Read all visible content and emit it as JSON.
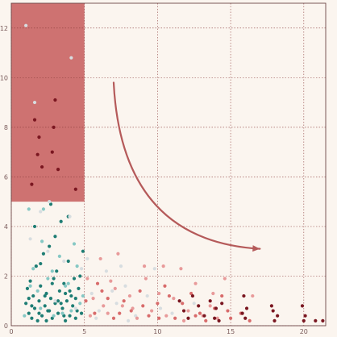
{
  "chart_data": {
    "type": "scatter",
    "title": "",
    "xlabel": "",
    "ylabel": "",
    "xlim": [
      0,
      21.5
    ],
    "ylim": [
      0,
      13
    ],
    "xticks": [
      0,
      5,
      10,
      15,
      20
    ],
    "yticks": [
      0,
      2,
      4,
      6,
      8,
      10,
      12
    ],
    "grid": true,
    "legend": "none",
    "highlight_region": {
      "x": [
        0,
        5
      ],
      "y": [
        5,
        13
      ],
      "color": "#c65a5a"
    },
    "annotation_arrow": {
      "from": [
        7,
        9.8
      ],
      "to": [
        17,
        3.1
      ],
      "color": "#b55a5a"
    },
    "colors": {
      "background": "#fbf5ef",
      "grid": "#8a3a3a",
      "axis": "#6d4646",
      "tick_text": "#7a5c5c",
      "teal": "#1e7d74",
      "light_teal": "#86c8c4",
      "pale": "#d7dde0",
      "pink": "#e89a9a",
      "rose": "#d86b6b",
      "dark_red": "#7a1620"
    },
    "series": [
      {
        "color": "#1e7d74",
        "points": [
          [
            1.0,
            0.9
          ],
          [
            1.1,
            1.5
          ],
          [
            1.2,
            0.5
          ],
          [
            1.3,
            1.8
          ],
          [
            1.4,
            0.3
          ],
          [
            1.5,
            1.2
          ],
          [
            1.6,
            0.7
          ],
          [
            1.7,
            2.4
          ],
          [
            1.8,
            0.2
          ],
          [
            1.9,
            1.0
          ],
          [
            2.0,
            1.6
          ],
          [
            2.1,
            0.4
          ],
          [
            2.2,
            2.9
          ],
          [
            2.3,
            0.8
          ],
          [
            2.4,
            1.3
          ],
          [
            2.5,
            0.6
          ],
          [
            2.6,
            3.2
          ],
          [
            2.7,
            1.1
          ],
          [
            2.8,
            0.3
          ],
          [
            2.9,
            1.9
          ],
          [
            3.0,
            0.9
          ],
          [
            3.1,
            2.2
          ],
          [
            3.2,
            0.5
          ],
          [
            3.3,
            1.4
          ],
          [
            3.4,
            4.2
          ],
          [
            3.5,
            0.7
          ],
          [
            3.6,
            1.7
          ],
          [
            3.7,
            0.2
          ],
          [
            3.8,
            1.0
          ],
          [
            3.9,
            2.6
          ],
          [
            4.0,
            0.4
          ],
          [
            4.1,
            1.2
          ],
          [
            4.2,
            0.8
          ],
          [
            4.3,
            1.9
          ],
          [
            4.4,
            0.3
          ],
          [
            4.5,
            0.6
          ],
          [
            4.6,
            1.5
          ],
          [
            1.6,
            4.0
          ],
          [
            2.0,
            2.5
          ],
          [
            2.4,
            0.2
          ],
          [
            2.8,
            1.7
          ],
          [
            3.2,
            1.0
          ],
          [
            3.6,
            0.4
          ],
          [
            4.0,
            1.4
          ],
          [
            1.2,
            1.1
          ],
          [
            3.0,
            3.6
          ],
          [
            2.7,
            4.9
          ],
          [
            3.9,
            4.4
          ],
          [
            2.3,
            1.2
          ],
          [
            3.4,
            0.9
          ],
          [
            1.9,
            0.5
          ],
          [
            4.4,
            1.1
          ],
          [
            2.6,
            0.6
          ],
          [
            3.7,
            1.3
          ],
          [
            1.4,
            0.8
          ],
          [
            4.8,
            0.5
          ],
          [
            4.9,
            3.0
          ],
          [
            4.7,
            2.0
          ]
        ]
      },
      {
        "color": "#86c8c4",
        "points": [
          [
            1.2,
            4.7
          ],
          [
            1.5,
            2.3
          ],
          [
            1.8,
            1.4
          ],
          [
            2.1,
            3.4
          ],
          [
            2.5,
            1.9
          ],
          [
            2.9,
            0.4
          ],
          [
            3.3,
            2.8
          ],
          [
            3.7,
            1.6
          ],
          [
            4.1,
            0.6
          ],
          [
            4.5,
            2.4
          ],
          [
            4.9,
            1.2
          ],
          [
            0.9,
            0.4
          ],
          [
            1.3,
            1.6
          ],
          [
            2.0,
            0.7
          ],
          [
            2.8,
            2.2
          ],
          [
            3.5,
            0.5
          ],
          [
            4.3,
            3.3
          ],
          [
            4.7,
            0.9
          ],
          [
            2.2,
            4.7
          ],
          [
            3.9,
            1.7
          ]
        ]
      },
      {
        "color": "#d7dde0",
        "points": [
          [
            1.0,
            12.1
          ],
          [
            4.1,
            10.8
          ],
          [
            1.6,
            9.0
          ],
          [
            2.0,
            4.6
          ],
          [
            4.0,
            4.4
          ],
          [
            2.5,
            3.0
          ],
          [
            3.0,
            1.0
          ],
          [
            4.8,
            2.3
          ],
          [
            5.5,
            1.3
          ],
          [
            6.0,
            0.6
          ],
          [
            6.5,
            2.2
          ],
          [
            7.2,
            0.9
          ],
          [
            7.8,
            1.6
          ],
          [
            8.5,
            0.4
          ],
          [
            9.3,
            1.2
          ],
          [
            10.2,
            0.7
          ],
          [
            5.8,
            0.3
          ],
          [
            6.9,
            1.4
          ],
          [
            8.0,
            0.2
          ],
          [
            9.8,
            2.3
          ],
          [
            2.6,
            5.0
          ],
          [
            1.3,
            3.5
          ],
          [
            3.6,
            2.6
          ],
          [
            4.4,
            0.7
          ],
          [
            5.2,
            2.7
          ],
          [
            7.5,
            2.4
          ],
          [
            11.0,
            0.5
          ],
          [
            12.5,
            0.9
          ]
        ]
      },
      {
        "color": "#e89a9a",
        "points": [
          [
            5.2,
            1.9
          ],
          [
            5.6,
            1.1
          ],
          [
            6.1,
            2.7
          ],
          [
            6.6,
            0.5
          ],
          [
            7.1,
            1.5
          ],
          [
            7.6,
            0.8
          ],
          [
            8.1,
            1.2
          ],
          [
            8.6,
            0.3
          ],
          [
            9.1,
            2.4
          ],
          [
            9.6,
            0.6
          ],
          [
            10.1,
            1.3
          ],
          [
            10.6,
            0.4
          ],
          [
            11.1,
            1.1
          ],
          [
            11.6,
            2.3
          ],
          [
            12.1,
            0.6
          ],
          [
            12.6,
            1.7
          ],
          [
            13.1,
            0.4
          ],
          [
            13.6,
            0.8
          ],
          [
            14.1,
            0.3
          ],
          [
            14.6,
            1.9
          ],
          [
            5.4,
            0.4
          ],
          [
            6.3,
            0.8
          ],
          [
            7.3,
            2.9
          ],
          [
            8.3,
            0.7
          ],
          [
            9.2,
            1.9
          ],
          [
            10.4,
            2.4
          ],
          [
            11.8,
            0.2
          ],
          [
            13.8,
            1.3
          ],
          [
            16.5,
            1.2
          ],
          [
            6.8,
            1.8
          ]
        ]
      },
      {
        "color": "#d86b6b",
        "points": [
          [
            5.1,
            1.0
          ],
          [
            5.7,
            0.5
          ],
          [
            6.2,
            1.4
          ],
          [
            7.0,
            0.3
          ],
          [
            7.7,
            1.0
          ],
          [
            8.2,
            0.6
          ],
          [
            8.8,
            1.4
          ],
          [
            9.4,
            0.4
          ],
          [
            10.0,
            0.9
          ],
          [
            10.5,
            1.6
          ],
          [
            11.2,
            0.3
          ],
          [
            11.7,
            0.9
          ],
          [
            12.3,
            1.3
          ],
          [
            12.9,
            0.5
          ],
          [
            13.3,
            0.2
          ],
          [
            13.9,
            0.7
          ],
          [
            14.4,
            1.2
          ],
          [
            15.0,
            0.3
          ],
          [
            15.7,
            0.5
          ],
          [
            16.3,
            0.2
          ],
          [
            5.9,
            1.7
          ],
          [
            6.6,
            1.1
          ],
          [
            7.4,
            0.5
          ],
          [
            9.0,
            0.8
          ],
          [
            10.8,
            1.2
          ],
          [
            12.6,
            0.4
          ],
          [
            14.8,
            0.6
          ],
          [
            10.1,
            0.3
          ]
        ]
      },
      {
        "color": "#7a1620",
        "points": [
          [
            11.5,
            1.0
          ],
          [
            11.8,
            0.6
          ],
          [
            12.1,
            0.3
          ],
          [
            12.4,
            1.2
          ],
          [
            12.8,
            0.8
          ],
          [
            13.2,
            0.4
          ],
          [
            13.6,
            1.0
          ],
          [
            14.0,
            0.7
          ],
          [
            14.2,
            0.2
          ],
          [
            15.9,
            1.2
          ],
          [
            16.1,
            0.7
          ],
          [
            16.0,
            0.3
          ],
          [
            17.8,
            0.8
          ],
          [
            18.2,
            0.4
          ],
          [
            18.0,
            0.2
          ],
          [
            19.9,
            0.8
          ],
          [
            20.1,
            0.4
          ],
          [
            20.0,
            0.2
          ],
          [
            20.8,
            0.2
          ],
          [
            21.3,
            0.2
          ],
          [
            13.9,
            0.3
          ],
          [
            15.8,
            0.5
          ],
          [
            17.9,
            0.6
          ],
          [
            14.4,
            0.9
          ],
          [
            1.4,
            5.7
          ],
          [
            1.6,
            8.3
          ],
          [
            1.9,
            7.6
          ],
          [
            2.1,
            6.4
          ],
          [
            2.8,
            7.0
          ],
          [
            3.0,
            9.1
          ],
          [
            3.2,
            6.3
          ],
          [
            4.4,
            5.5
          ],
          [
            2.9,
            8.0
          ],
          [
            1.8,
            6.9
          ]
        ]
      }
    ]
  }
}
